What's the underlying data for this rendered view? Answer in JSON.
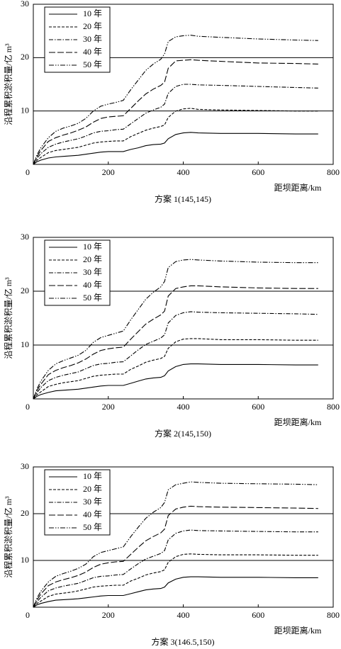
{
  "chart_data": [
    {
      "type": "line",
      "title": "方案 1(145,145)",
      "xlabel": "距坝距离/km",
      "ylabel": "沿程累积淤积量/亿 m³",
      "xlim": [
        0,
        800
      ],
      "xticks": [
        0,
        200,
        400,
        600,
        800
      ],
      "ylim": [
        0,
        30
      ],
      "yticks": [
        10,
        20,
        30
      ],
      "grid": true,
      "legend": "upper-left",
      "x": [
        0,
        10,
        20,
        40,
        60,
        80,
        100,
        120,
        140,
        160,
        180,
        200,
        220,
        240,
        260,
        280,
        300,
        320,
        340,
        350,
        360,
        380,
        400,
        420,
        440,
        500,
        600,
        700,
        760
      ],
      "series": [
        {
          "name": "10 年",
          "color": "#000000",
          "style": "solid",
          "values": [
            0,
            0.5,
            0.8,
            1.2,
            1.4,
            1.5,
            1.6,
            1.7,
            1.9,
            2.1,
            2.3,
            2.4,
            2.4,
            2.4,
            2.8,
            3.1,
            3.5,
            3.7,
            3.8,
            4.0,
            4.8,
            5.6,
            5.9,
            6.0,
            5.9,
            5.8,
            5.8,
            5.7,
            5.7
          ]
        },
        {
          "name": "20 年",
          "color": "#000000",
          "style": "dashed",
          "values": [
            0,
            0.8,
            1.3,
            2.2,
            2.6,
            2.8,
            3.0,
            3.2,
            3.6,
            4.0,
            4.2,
            4.3,
            4.4,
            4.4,
            5.2,
            5.8,
            6.4,
            6.8,
            7.1,
            7.4,
            8.8,
            10.0,
            10.4,
            10.5,
            10.3,
            10.2,
            10.1,
            10.0,
            10.0
          ]
        },
        {
          "name": "30 年",
          "color": "#000000",
          "style": "dash-dot",
          "values": [
            0,
            1.2,
            2.0,
            3.2,
            3.8,
            4.2,
            4.5,
            4.8,
            5.3,
            5.9,
            6.2,
            6.3,
            6.5,
            6.6,
            7.6,
            8.6,
            9.6,
            10.2,
            10.7,
            11.3,
            13.3,
            14.6,
            15.0,
            15.0,
            14.9,
            14.8,
            14.6,
            14.4,
            14.3
          ]
        },
        {
          "name": "40 年",
          "color": "#000000",
          "style": "long-dash",
          "values": [
            0,
            1.5,
            2.6,
            4.3,
            5.0,
            5.5,
            5.9,
            6.4,
            7.0,
            7.9,
            8.6,
            8.9,
            9.0,
            9.1,
            10.5,
            11.9,
            13.2,
            14.1,
            14.8,
            15.4,
            18.0,
            19.4,
            19.5,
            19.6,
            19.5,
            19.3,
            19.0,
            18.9,
            18.8
          ]
        },
        {
          "name": "50 年",
          "color": "#000000",
          "style": "dash-dot-dot",
          "values": [
            0,
            1.8,
            3.1,
            5.0,
            6.2,
            6.8,
            7.2,
            7.7,
            8.6,
            10.0,
            10.9,
            11.3,
            11.6,
            12.0,
            14.0,
            15.8,
            17.6,
            18.8,
            19.7,
            20.7,
            23.0,
            23.9,
            24.1,
            24.2,
            24.0,
            23.8,
            23.5,
            23.3,
            23.2
          ]
        }
      ]
    },
    {
      "type": "line",
      "title": "方案 2(145,150)",
      "xlabel": "距坝距离/km",
      "ylabel": "沿程累积淤积量/亿 m³",
      "xlim": [
        0,
        800
      ],
      "xticks": [
        0,
        200,
        400,
        600,
        800
      ],
      "ylim": [
        0,
        30
      ],
      "yticks": [
        10,
        20,
        30
      ],
      "grid": true,
      "legend": "upper-left",
      "x": [
        0,
        10,
        20,
        40,
        60,
        80,
        100,
        120,
        140,
        160,
        180,
        200,
        220,
        240,
        260,
        280,
        300,
        320,
        340,
        350,
        360,
        380,
        400,
        420,
        440,
        500,
        600,
        700,
        760
      ],
      "series": [
        {
          "name": "10 年",
          "color": "#000000",
          "style": "solid",
          "values": [
            0,
            0.5,
            0.8,
            1.2,
            1.5,
            1.6,
            1.7,
            1.8,
            2.0,
            2.2,
            2.4,
            2.5,
            2.5,
            2.5,
            2.9,
            3.3,
            3.7,
            3.9,
            4.0,
            4.3,
            5.2,
            6.0,
            6.4,
            6.5,
            6.5,
            6.4,
            6.4,
            6.3,
            6.3
          ]
        },
        {
          "name": "20 年",
          "color": "#000000",
          "style": "dashed",
          "values": [
            0,
            0.8,
            1.3,
            2.3,
            2.7,
            3.0,
            3.2,
            3.4,
            3.8,
            4.2,
            4.4,
            4.5,
            4.6,
            4.6,
            5.5,
            6.1,
            6.8,
            7.2,
            7.5,
            7.9,
            9.4,
            10.6,
            11.1,
            11.2,
            11.2,
            11.0,
            11.0,
            10.9,
            10.9
          ]
        },
        {
          "name": "30 年",
          "color": "#000000",
          "style": "dash-dot",
          "values": [
            0,
            1.2,
            2.1,
            3.4,
            4.0,
            4.4,
            4.7,
            5.0,
            5.6,
            6.2,
            6.5,
            6.6,
            6.8,
            6.9,
            8.0,
            9.1,
            10.1,
            10.7,
            11.3,
            11.9,
            14.1,
            15.5,
            16.0,
            16.2,
            16.1,
            16.0,
            15.9,
            15.8,
            15.7
          ]
        },
        {
          "name": "40 年",
          "color": "#000000",
          "style": "long-dash",
          "values": [
            0,
            1.6,
            2.7,
            4.5,
            5.3,
            5.8,
            6.2,
            6.7,
            7.4,
            8.3,
            9.0,
            9.3,
            9.5,
            9.6,
            11.1,
            12.5,
            13.9,
            14.8,
            15.6,
            16.3,
            19.1,
            20.5,
            20.8,
            21.0,
            21.0,
            20.8,
            20.6,
            20.5,
            20.5
          ]
        },
        {
          "name": "50 年",
          "color": "#000000",
          "style": "dash-dot-dot",
          "values": [
            0,
            1.9,
            3.3,
            5.3,
            6.5,
            7.1,
            7.6,
            8.1,
            9.0,
            10.5,
            11.4,
            11.8,
            12.2,
            12.6,
            14.7,
            16.6,
            18.5,
            19.8,
            20.8,
            21.8,
            24.4,
            25.5,
            25.8,
            25.9,
            25.8,
            25.6,
            25.4,
            25.3,
            25.3
          ]
        }
      ]
    },
    {
      "type": "line",
      "title": "方案 3(146.5,150)",
      "xlabel": "距坝距离/km",
      "ylabel": "沿程累积淤积量/亿 m³",
      "xlim": [
        0,
        800
      ],
      "xticks": [
        0,
        200,
        400,
        600,
        800
      ],
      "ylim": [
        0,
        30
      ],
      "yticks": [
        10,
        20,
        30
      ],
      "grid": true,
      "legend": "upper-left",
      "x": [
        0,
        10,
        20,
        40,
        60,
        80,
        100,
        120,
        140,
        160,
        180,
        200,
        220,
        240,
        260,
        280,
        300,
        320,
        340,
        350,
        360,
        380,
        400,
        420,
        440,
        500,
        600,
        700,
        760
      ],
      "series": [
        {
          "name": "10 年",
          "color": "#000000",
          "style": "solid",
          "values": [
            0,
            0.5,
            0.8,
            1.2,
            1.5,
            1.6,
            1.7,
            1.8,
            2.0,
            2.2,
            2.4,
            2.5,
            2.5,
            2.5,
            2.9,
            3.3,
            3.7,
            3.9,
            4.0,
            4.3,
            5.2,
            6.0,
            6.4,
            6.5,
            6.5,
            6.4,
            6.4,
            6.3,
            6.3
          ]
        },
        {
          "name": "20 年",
          "color": "#000000",
          "style": "dashed",
          "values": [
            0,
            0.8,
            1.3,
            2.3,
            2.8,
            3.0,
            3.2,
            3.5,
            3.9,
            4.3,
            4.5,
            4.6,
            4.7,
            4.7,
            5.6,
            6.2,
            6.9,
            7.3,
            7.6,
            8.0,
            9.6,
            10.8,
            11.3,
            11.4,
            11.3,
            11.2,
            11.2,
            11.1,
            11.1
          ]
        },
        {
          "name": "30 年",
          "color": "#000000",
          "style": "dash-dot",
          "values": [
            0,
            1.2,
            2.1,
            3.5,
            4.1,
            4.5,
            4.8,
            5.1,
            5.7,
            6.3,
            6.6,
            6.7,
            6.9,
            7.0,
            8.2,
            9.3,
            10.3,
            10.9,
            11.5,
            12.1,
            14.4,
            15.8,
            16.3,
            16.5,
            16.4,
            16.3,
            16.2,
            16.1,
            16.1
          ]
        },
        {
          "name": "40 年",
          "color": "#000000",
          "style": "long-dash",
          "values": [
            0,
            1.6,
            2.8,
            4.6,
            5.4,
            5.9,
            6.3,
            6.8,
            7.5,
            8.5,
            9.2,
            9.5,
            9.7,
            9.8,
            11.3,
            12.8,
            14.2,
            15.1,
            15.9,
            16.7,
            19.6,
            21.0,
            21.4,
            21.6,
            21.5,
            21.4,
            21.3,
            21.2,
            21.1
          ]
        },
        {
          "name": "50 年",
          "color": "#000000",
          "style": "dash-dot-dot",
          "values": [
            0,
            2.0,
            3.4,
            5.4,
            6.6,
            7.2,
            7.7,
            8.3,
            9.2,
            10.8,
            11.7,
            12.1,
            12.5,
            12.9,
            15.1,
            17.1,
            19.0,
            20.3,
            21.3,
            22.4,
            25.1,
            26.2,
            26.5,
            26.8,
            26.7,
            26.5,
            26.4,
            26.3,
            26.2
          ]
        }
      ]
    }
  ]
}
